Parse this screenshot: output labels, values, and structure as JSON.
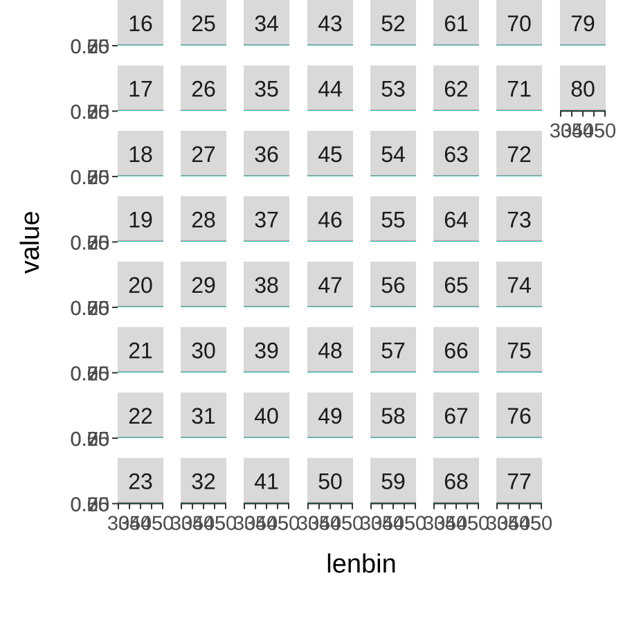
{
  "chart_data": {
    "type": "line",
    "layout": "faceted small multiples (facet_wrap)",
    "xlabel": "lenbin",
    "ylabel": "value",
    "facets": [
      "16",
      "17",
      "18",
      "19",
      "20",
      "21",
      "22",
      "23",
      "25",
      "26",
      "27",
      "28",
      "29",
      "30",
      "31",
      "32",
      "34",
      "35",
      "36",
      "37",
      "38",
      "39",
      "40",
      "41",
      "43",
      "44",
      "45",
      "46",
      "47",
      "48",
      "49",
      "50",
      "52",
      "53",
      "54",
      "55",
      "56",
      "57",
      "58",
      "59",
      "61",
      "62",
      "63",
      "64",
      "65",
      "66",
      "67",
      "68",
      "70",
      "71",
      "72",
      "73",
      "74",
      "75",
      "76",
      "77",
      "79",
      "80"
    ],
    "facet_columns": [
      [
        "16",
        "17",
        "18",
        "19",
        "20",
        "21",
        "22",
        "23"
      ],
      [
        "25",
        "26",
        "27",
        "28",
        "29",
        "30",
        "31",
        "32"
      ],
      [
        "34",
        "35",
        "36",
        "37",
        "38",
        "39",
        "40",
        "41"
      ],
      [
        "43",
        "44",
        "45",
        "46",
        "47",
        "48",
        "49",
        "50"
      ],
      [
        "52",
        "53",
        "54",
        "55",
        "56",
        "57",
        "58",
        "59"
      ],
      [
        "61",
        "62",
        "63",
        "64",
        "65",
        "66",
        "67",
        "68"
      ],
      [
        "70",
        "71",
        "72",
        "73",
        "74",
        "75",
        "76",
        "77"
      ],
      [
        "79",
        "80"
      ]
    ],
    "x_tick_labels": [
      "30",
      "35",
      "40",
      "45",
      "50"
    ],
    "y_tick_labels": [
      "0.00",
      "0.25",
      "0.50",
      "0.75"
    ],
    "series_colors": [
      "#F8766D",
      "#00BFC4"
    ],
    "grid": false,
    "panel_strip_color": "#d9d9d9"
  }
}
